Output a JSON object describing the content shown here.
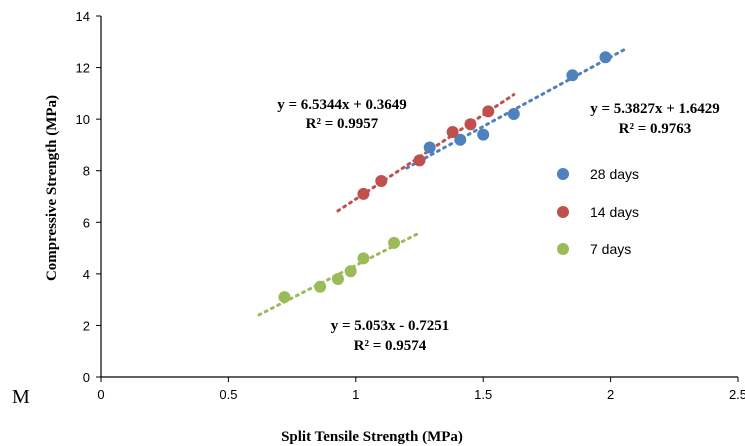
{
  "chart_data": {
    "type": "scatter",
    "xlabel": "Split Tensile Strength (MPa)",
    "ylabel": "Compressive Strength (MPa)",
    "xlim": [
      0,
      2.5
    ],
    "ylim": [
      0,
      14
    ],
    "x_ticks": [
      "0",
      "0.5",
      "1",
      "1.5",
      "2",
      "2.5"
    ],
    "y_ticks": [
      "0",
      "2",
      "4",
      "6",
      "8",
      "10",
      "12",
      "14"
    ],
    "grid": false,
    "legend_position": "right",
    "series": [
      {
        "name": "28 days",
        "color": "#4F81BD",
        "points": [
          [
            1.29,
            8.9
          ],
          [
            1.41,
            9.2
          ],
          [
            1.5,
            9.4
          ],
          [
            1.62,
            10.2
          ],
          [
            1.85,
            11.7
          ],
          [
            1.98,
            12.4
          ]
        ],
        "trendline": {
          "slope": 5.3827,
          "intercept": 1.6429,
          "x_range": [
            1.2,
            2.06
          ]
        },
        "equation": "y = 5.3827x + 1.6429",
        "r2": "R² = 0.9763"
      },
      {
        "name": "14 days",
        "color": "#C0504D",
        "points": [
          [
            1.03,
            7.1
          ],
          [
            1.1,
            7.6
          ],
          [
            1.25,
            8.4
          ],
          [
            1.38,
            9.5
          ],
          [
            1.45,
            9.8
          ],
          [
            1.52,
            10.3
          ]
        ],
        "trendline": {
          "slope": 6.5344,
          "intercept": 0.3649,
          "x_range": [
            0.93,
            1.62
          ]
        },
        "equation": "y = 6.5344x + 0.3649",
        "r2": "R² = 0.9957"
      },
      {
        "name": "7 days",
        "color": "#9BBB59",
        "points": [
          [
            0.72,
            3.1
          ],
          [
            0.86,
            3.5
          ],
          [
            0.93,
            3.8
          ],
          [
            0.98,
            4.1
          ],
          [
            1.03,
            4.6
          ],
          [
            1.15,
            5.2
          ]
        ],
        "trendline": {
          "slope": 5.053,
          "intercept": -0.7251,
          "x_range": [
            0.62,
            1.24
          ]
        },
        "equation": "y = 5.053x - 0.7251",
        "r2": "R² = 0.9574"
      }
    ]
  },
  "stray_text": "M"
}
